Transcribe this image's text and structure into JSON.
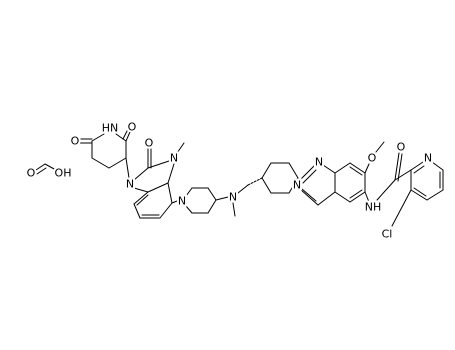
{
  "atoms": [
    "O",
    "OH",
    "O",
    "HN",
    "O",
    "O",
    "N",
    "N",
    "N",
    "N",
    "N",
    "N",
    "O",
    "O",
    "N",
    "NH",
    "Cl"
  ]
}
